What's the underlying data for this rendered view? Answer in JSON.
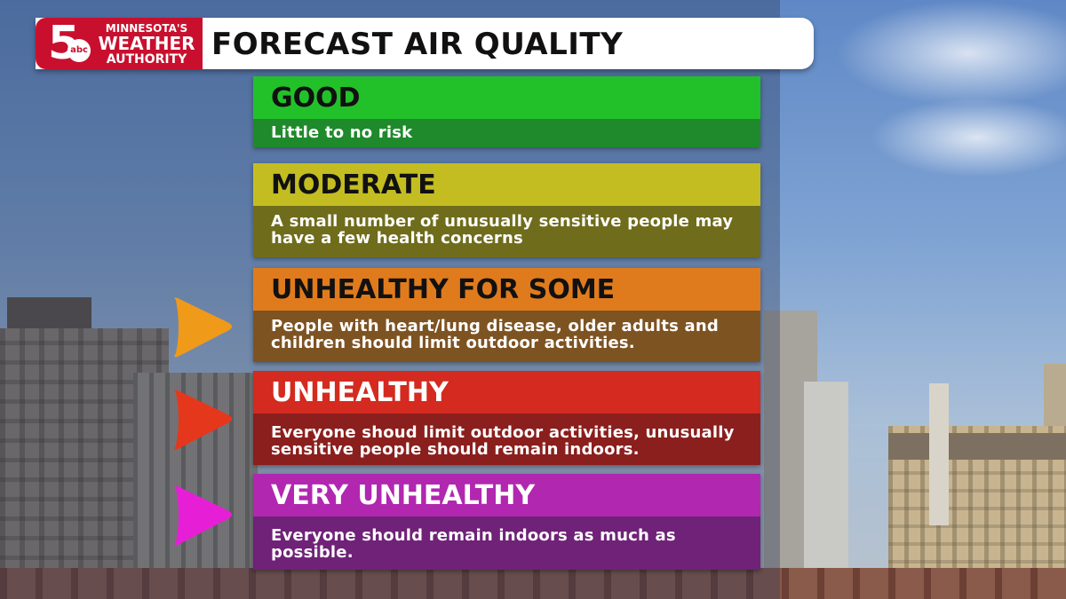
{
  "brand": {
    "logo_number": "5",
    "logo_network": "abc",
    "logo_line1": "MINNESOTA'S",
    "logo_line2": "WEATHER",
    "logo_line3": "AUTHORITY",
    "color": "#c8102e"
  },
  "title": "FORECAST AIR QUALITY",
  "categories": [
    {
      "name": "GOOD",
      "description": "Little to no risk",
      "head_color": "#22c12a",
      "desc_color": "#1f8a2b",
      "pointer": false
    },
    {
      "name": "MODERATE",
      "description": "A small number of unusually sensitive people may have a few health concerns",
      "head_color": "#c3bd22",
      "desc_color": "#6f6c1c",
      "pointer": false
    },
    {
      "name": "UNHEALTHY FOR SOME",
      "description": "People with heart/lung disease, older adults and children should limit outdoor activities.",
      "head_color": "#e07b1d",
      "desc_color": "#7d5322",
      "pointer": true,
      "pointer_color": "#f09a1a"
    },
    {
      "name": "UNHEALTHY",
      "description": "Everyone shoud limit outdoor activities, unusually sensitive people should remain indoors.",
      "head_color": "#d42a1f",
      "desc_color": "#8a1f1d",
      "pointer": true,
      "pointer_color": "#e5371c"
    },
    {
      "name": "VERY UNHEALTHY",
      "description": "Everyone should remain indoors as much as possible.",
      "head_color": "#b127b0",
      "desc_color": "#6f2277",
      "pointer": true,
      "pointer_color": "#e61fd6"
    }
  ]
}
